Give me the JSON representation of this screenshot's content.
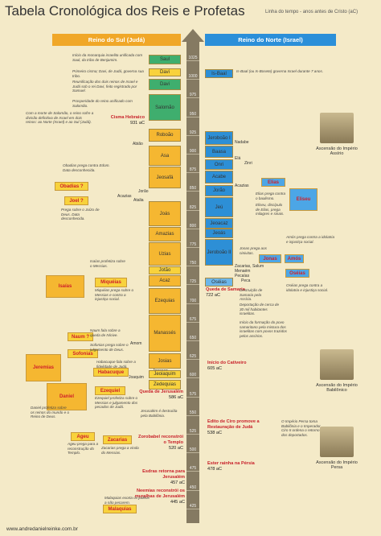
{
  "header": {
    "title": "Tabela Cronológica dos Reis e Profetas",
    "subtitle": "Linha do tempo - anos antes de Cristo (aC)"
  },
  "kingdoms": {
    "south": "Reino do Sul (Judá)",
    "north": "Reino do Norte (Israel)"
  },
  "ticks": [
    1025,
    1000,
    975,
    950,
    925,
    900,
    875,
    850,
    825,
    800,
    775,
    750,
    725,
    700,
    675,
    650,
    625,
    600,
    575,
    550,
    525,
    500,
    475,
    450,
    425
  ],
  "united_kings": [
    "Saul",
    "Davi",
    "Davi",
    "Salomão",
    "Is-Baal"
  ],
  "judah_kings": [
    "Roboão",
    "Abião",
    "Asa",
    "Jeosafá",
    "Jorão",
    "Acazias",
    "Atalia",
    "Joás",
    "Amazias",
    "Uzias",
    "Jotão",
    "Acaz",
    "Ezequias",
    "Manassés",
    "Amom",
    "Josias",
    "Jeoacaz",
    "Jeoiaquim",
    "Joaquim",
    "Zedequias"
  ],
  "israel_kings": [
    "Jeroboão I",
    "Nadabe",
    "Baasa",
    "Elá",
    "Zinri",
    "Onri",
    "Acabe",
    "Acazias",
    "Jorão",
    "Jeú",
    "Jeoacaz",
    "Jeoás",
    "Jeroboão II",
    "Zacarias, Salum",
    "Menaém",
    "Pecaías",
    "Peca",
    "Oséias"
  ],
  "prophets": [
    "Obadias ?",
    "Joel ?",
    "Isaías",
    "Miquéias",
    "Naum ?",
    "Sofonias",
    "Habacuque",
    "Jeremias",
    "Daniel",
    "Ezequiel",
    "Ageu",
    "Zacarias",
    "Malaquias",
    "Elias",
    "Eliseu",
    "Jonas",
    "Amós",
    "Oséias"
  ],
  "events": [
    {
      "label": "Cisma Hebraico",
      "year": "931 aC"
    },
    {
      "label": "Queda de Samaria",
      "year": "722 aC"
    },
    {
      "label": "Início do Cativeiro",
      "year": "605 aC"
    },
    {
      "label": "Queda de Jerusalém",
      "year": "586 aC"
    },
    {
      "label": "Edito de Ciro promove a Restauração de Judá",
      "year": "538 aC"
    },
    {
      "label": "Zorobabel reconstrói o Templo",
      "year": "520 aC"
    },
    {
      "label": "Ester rainha na Pérsia",
      "year": "478 aC"
    },
    {
      "label": "Esdras retorna para Jerusalém",
      "year": "457 aC"
    },
    {
      "label": "Neemias reconstrói os muralhas de Jerusalém",
      "year": "445 aC"
    }
  ],
  "notes": [
    "Início da monarquia israelita unificada com Saul, da tribo de Benjamim.",
    "Primeiro cisma; Davi, de Judá, governa sua tribo.",
    "Is-Baal (ou Is-Bosete) governa Israel durante 7 anos.",
    "Reunificação dos dois reinos de Israel e Judá sob o rei Davi, feito registrado por Samuel.",
    "Prosperidade do reino unificado com Salomão.",
    "Com a morte de Salomão, o reino sofre a divisão definitiva de Israel em dois reinos: ao Norte (Israel) e ao Sul (Judá).",
    "Obadias prega contra Edom. Data desconhecida.",
    "Prega sobre o Juízo de Deus. Data desconhecida.",
    "Elias prega contra o baalismo.",
    "Eliseu, discípulo de Elias, prega milagres e sinais.",
    "Amós prega contra a idolatria e injustiça social.",
    "Jonas prega aos ninivitas.",
    "Isaías profetiza sobre o Messias.",
    "Miquéias prega sobre o Messias e contra a injustiça social.",
    "Oséias prega contra a idolatria e injustiça social.",
    "Destruição de Samaria pela Assíria.",
    "Deportação de cerca de 30 mil habitantes israelitas.",
    "Início da formação do povo samaritano pela mistura dos israelitas com povos trazidos pelos assírios.",
    "Naum fala sobre a queda de Nínive.",
    "Sofonias prega sobre o julgamento de Deus.",
    "Habacuque fala sobre a fidelidade de Judá.",
    "Ezequiel profetiza sobre o Messias e julgamento dos pecados de Judá.",
    "Daniel profetiza sobre os reinos do mundo e o Reino de Deus.",
    "Jerusalém é destruída pela Babilônia.",
    "Ageu prega para a reconstrução do Templo.",
    "Zacarias prega a vinda do Messias.",
    "O Império Persa toma Babilônia e o Imperador Ciro II ordena o retorno dos deportados.",
    "Malaquias exorta os judeus a não pecarem."
  ],
  "empires": [
    "Ascensão do Império Assírio",
    "Ascensão do Império Babilônico",
    "Ascensão do Império Persa"
  ],
  "footer": "www.andredanielreinke.com.br"
}
